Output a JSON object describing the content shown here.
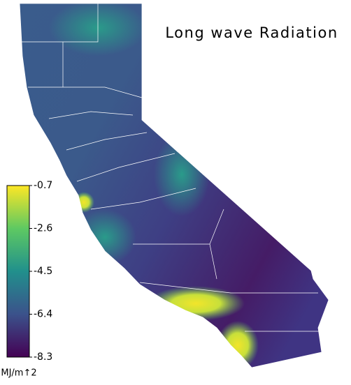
{
  "title": "Long wave Radiation",
  "colorbar": {
    "lim": [
      -8.3,
      -0.7
    ],
    "ticks": [
      -0.7,
      -2.6,
      -4.5,
      -6.4,
      -8.3
    ],
    "label": "MJ/m↑2",
    "colors": [
      "#440154",
      "#3b528b",
      "#21908c",
      "#5ec962",
      "#fde725"
    ]
  }
}
